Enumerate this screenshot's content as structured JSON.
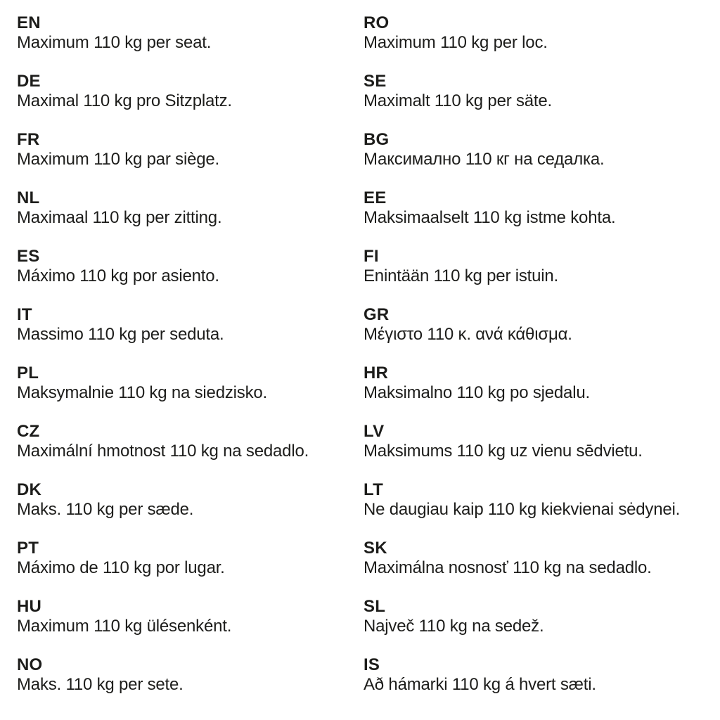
{
  "page": {
    "background_color": "#ffffff",
    "text_color": "#1d1d1b",
    "description": "Multilingual weight limit notice",
    "weight_limit": "110 kg"
  },
  "columns": [
    {
      "entries": [
        {
          "lang": "EN",
          "text": "Maximum 110 kg per seat."
        },
        {
          "lang": "DE",
          "text": "Maximal 110 kg pro Sitzplatz."
        },
        {
          "lang": "FR",
          "text": "Maximum 110 kg par siège."
        },
        {
          "lang": "NL",
          "text": "Maximaal 110 kg per zitting."
        },
        {
          "lang": "ES",
          "text": "Máximo 110 kg por asiento."
        },
        {
          "lang": "IT",
          "text": "Massimo 110 kg per seduta."
        },
        {
          "lang": "PL",
          "text": "Maksymalnie 110 kg na siedzisko."
        },
        {
          "lang": "CZ",
          "text": "Maximální hmotnost 110 kg na sedadlo."
        },
        {
          "lang": "DK",
          "text": "Maks. 110 kg per sæde."
        },
        {
          "lang": "PT",
          "text": "Máximo de 110 kg por lugar."
        },
        {
          "lang": "HU",
          "text": "Maximum 110 kg ülésenként."
        },
        {
          "lang": "NO",
          "text": "Maks. 110 kg per sete."
        }
      ]
    },
    {
      "entries": [
        {
          "lang": "RO",
          "text": "Maximum 110 kg per loc."
        },
        {
          "lang": "SE",
          "text": "Maximalt 110 kg per säte."
        },
        {
          "lang": "BG",
          "text": "Максимално 110 кг на седалка."
        },
        {
          "lang": "EE",
          "text": "Maksimaalselt 110 kg istme kohta."
        },
        {
          "lang": "FI",
          "text": "Enintään 110 kg per istuin."
        },
        {
          "lang": "GR",
          "text": "Μέγιστο 110 κ. ανά κάθισμα."
        },
        {
          "lang": "HR",
          "text": "Maksimalno 110 kg po sjedalu."
        },
        {
          "lang": "LV",
          "text": "Maksimums 110 kg uz vienu sēdvietu."
        },
        {
          "lang": "LT",
          "text": "Ne daugiau kaip 110 kg kiekvienai sėdynei."
        },
        {
          "lang": "SK",
          "text": "Maximálna nosnosť 110 kg na sedadlo."
        },
        {
          "lang": "SL",
          "text": "Največ 110 kg na sedež."
        },
        {
          "lang": "IS",
          "text": "Að hámarki 110 kg á hvert sæti."
        }
      ]
    }
  ]
}
